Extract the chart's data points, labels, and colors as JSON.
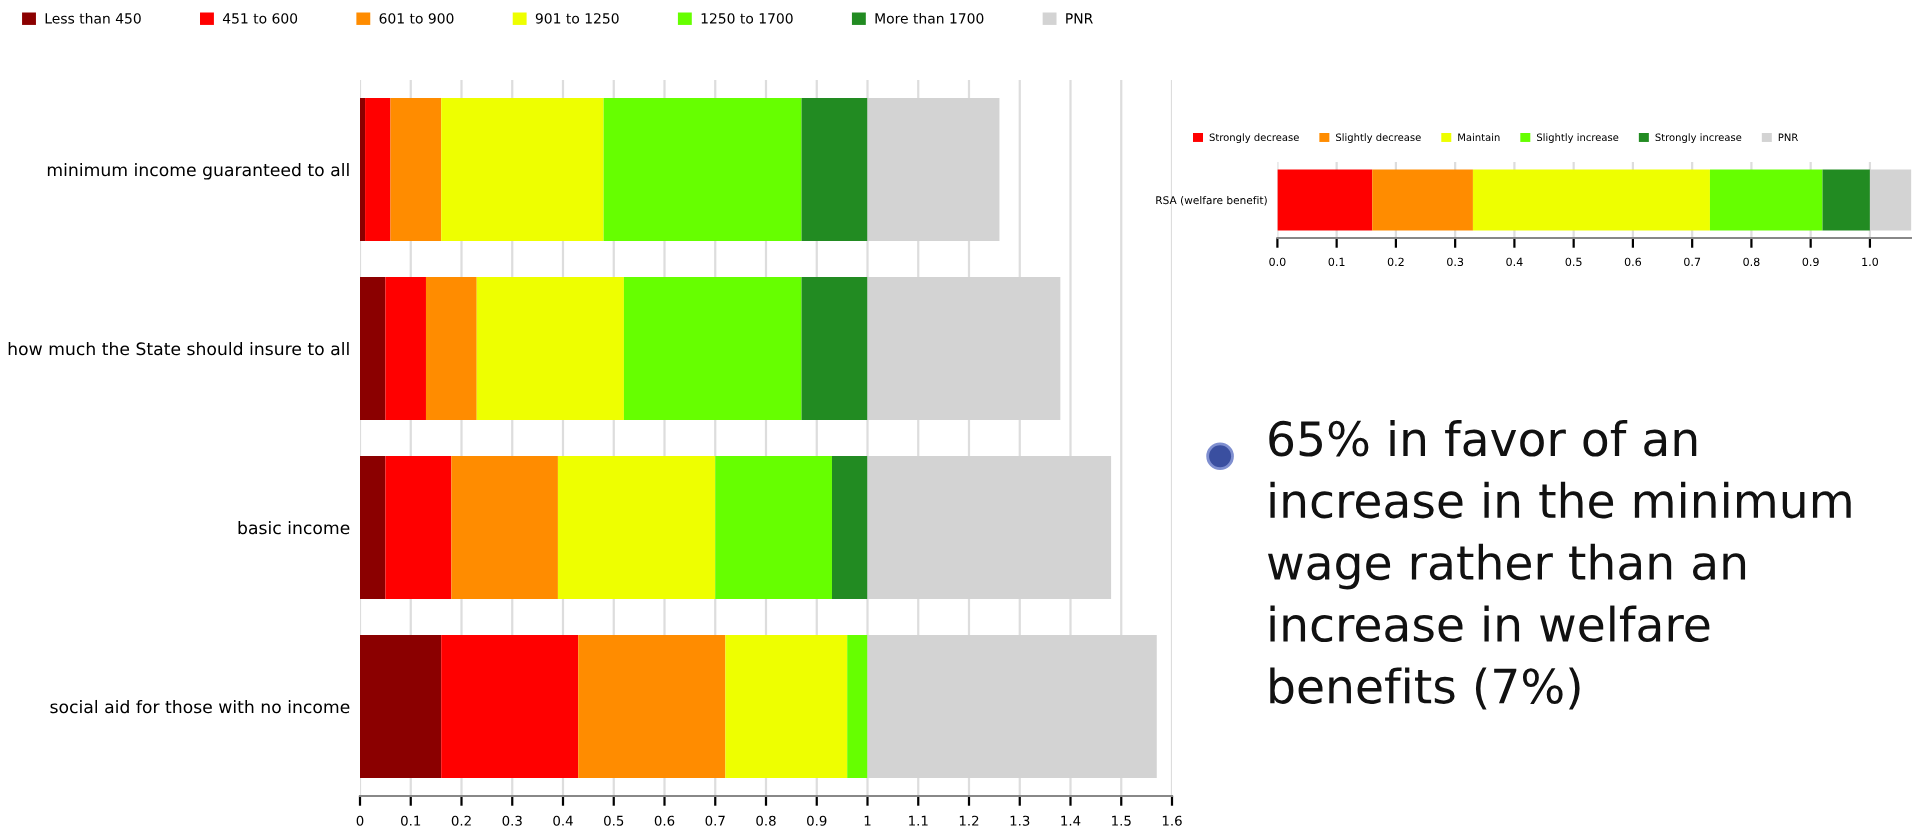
{
  "chart_data": [
    {
      "type": "bar",
      "orientation": "horizontal",
      "stacked": true,
      "legend": "top",
      "grid": "x",
      "categories": [
        "minimum income guaranteed to all",
        "how much the State should insure to all",
        "basic income",
        "social aid for those with no income"
      ],
      "series": [
        {
          "name": "Less than 450",
          "color": "#8b0000",
          "values": [
            0.01,
            0.05,
            0.05,
            0.16
          ]
        },
        {
          "name": "451 to 600",
          "color": "#ff0000",
          "values": [
            0.05,
            0.08,
            0.13,
            0.27
          ]
        },
        {
          "name": "601 to 900",
          "color": "#ff8c00",
          "values": [
            0.1,
            0.1,
            0.21,
            0.29
          ]
        },
        {
          "name": "901 to 1250",
          "color": "#eeff00",
          "values": [
            0.32,
            0.29,
            0.31,
            0.24
          ]
        },
        {
          "name": "1250 to 1700",
          "color": "#66ff00",
          "values": [
            0.39,
            0.35,
            0.23,
            0.04
          ]
        },
        {
          "name": "More than 1700",
          "color": "#228b22",
          "values": [
            0.13,
            0.13,
            0.07,
            0
          ]
        },
        {
          "name": "PNR",
          "color": "#d3d3d3",
          "values": [
            0.26,
            0.38,
            0.48,
            0.57
          ]
        }
      ],
      "xlim": [
        0,
        1.6
      ],
      "xticks": [
        0,
        0.1,
        0.2,
        0.3,
        0.4,
        0.5,
        0.6,
        0.7,
        0.8,
        0.9,
        1,
        1.1,
        1.2,
        1.3,
        1.4,
        1.5,
        1.6
      ]
    },
    {
      "type": "bar",
      "orientation": "horizontal",
      "stacked": true,
      "legend": "top",
      "grid": "x",
      "categories": [
        "RSA (welfare benefit)"
      ],
      "series": [
        {
          "name": "Strongly decrease",
          "color": "#ff0000",
          "values": [
            0.16
          ]
        },
        {
          "name": "Slightly decrease",
          "color": "#ff8c00",
          "values": [
            0.17
          ]
        },
        {
          "name": "Maintain",
          "color": "#eeff00",
          "values": [
            0.4
          ]
        },
        {
          "name": "Slightly increase",
          "color": "#66ff00",
          "values": [
            0.19
          ]
        },
        {
          "name": "Strongly increase",
          "color": "#228b22",
          "values": [
            0.08
          ]
        },
        {
          "name": "PNR",
          "color": "#d3d3d3",
          "values": [
            0.07
          ]
        }
      ],
      "xlim": [
        0,
        1.07
      ],
      "xticks": [
        {
          "value": 0,
          "label": "0.0"
        },
        0.1,
        0.2,
        0.3,
        0.4,
        0.5,
        0.6,
        0.7,
        0.8,
        0.9,
        {
          "value": 1,
          "label": "1.0"
        }
      ]
    },
    {
      "type": "other",
      "annotations": [
        "65% in favor of an increase in the minimum wage rather than an increase in welfare benefits (7%)"
      ]
    }
  ]
}
